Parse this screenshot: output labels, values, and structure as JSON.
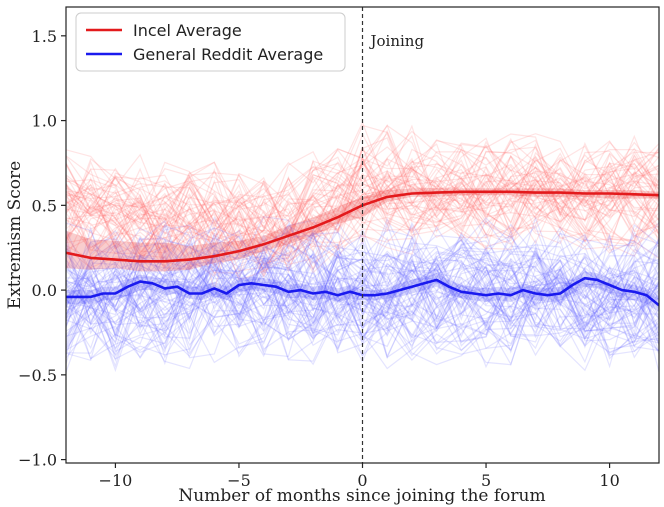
{
  "chart_data": {
    "type": "line",
    "xlabel": "Number of months since joining the forum",
    "ylabel": "Extremism Score",
    "xlim": [
      -12,
      12
    ],
    "ylim": [
      -1.02,
      1.67
    ],
    "xticks": [
      -10,
      -5,
      0,
      5,
      10
    ],
    "yticks": [
      -1.0,
      -0.5,
      0.0,
      0.5,
      1.0,
      1.5
    ],
    "xtick_labels": [
      "−10",
      "−5",
      "0",
      "5",
      "10"
    ],
    "ytick_labels": [
      "−1.0",
      "−0.5",
      "0.0",
      "0.5",
      "1.0",
      "1.5"
    ],
    "grid": false,
    "legend_position": "top-left",
    "annotation": {
      "x": 0,
      "label": "Joining"
    },
    "series": [
      {
        "name": "Incel Average",
        "color": "#e31a1c",
        "x": [
          -12,
          -11,
          -10,
          -9,
          -8,
          -7,
          -6,
          -5,
          -4,
          -3,
          -2,
          -1,
          0,
          1,
          2,
          3,
          4,
          5,
          6,
          7,
          8,
          9,
          10,
          11,
          12
        ],
        "values": [
          0.22,
          0.19,
          0.18,
          0.17,
          0.17,
          0.18,
          0.2,
          0.23,
          0.27,
          0.32,
          0.37,
          0.43,
          0.5,
          0.55,
          0.57,
          0.575,
          0.58,
          0.58,
          0.58,
          0.575,
          0.575,
          0.57,
          0.57,
          0.565,
          0.56
        ],
        "band_lower": [
          0.13,
          0.12,
          0.13,
          0.11,
          0.11,
          0.12,
          0.16,
          0.18,
          0.23,
          0.27,
          0.32,
          0.39,
          0.43,
          0.52,
          0.55,
          0.55,
          0.56,
          0.56,
          0.56,
          0.55,
          0.55,
          0.55,
          0.54,
          0.54,
          0.54
        ],
        "band_upper": [
          0.35,
          0.3,
          0.29,
          0.28,
          0.28,
          0.26,
          0.28,
          0.29,
          0.32,
          0.38,
          0.43,
          0.49,
          0.55,
          0.59,
          0.6,
          0.6,
          0.6,
          0.6,
          0.6,
          0.6,
          0.6,
          0.59,
          0.59,
          0.59,
          0.58
        ]
      },
      {
        "name": "General Reddit Average",
        "color": "#1a1aee",
        "x": [
          -12,
          -11.5,
          -11,
          -10.5,
          -10,
          -9.5,
          -9,
          -8.5,
          -8,
          -7.5,
          -7,
          -6.5,
          -6,
          -5.5,
          -5,
          -4.5,
          -4,
          -3.5,
          -3,
          -2.5,
          -2,
          -1.5,
          -1,
          -0.5,
          0,
          0.5,
          1,
          1.5,
          2,
          2.5,
          3,
          3.5,
          4,
          4.5,
          5,
          5.5,
          6,
          6.5,
          7,
          7.5,
          8,
          8.5,
          9,
          9.5,
          10,
          10.5,
          11,
          11.5,
          12
        ],
        "values": [
          -0.04,
          -0.04,
          -0.04,
          -0.02,
          -0.02,
          0.02,
          0.05,
          0.04,
          0.01,
          0.02,
          -0.02,
          -0.02,
          0.01,
          -0.02,
          0.03,
          0.04,
          0.03,
          0.02,
          -0.01,
          0.0,
          -0.02,
          -0.01,
          -0.03,
          -0.01,
          -0.03,
          -0.03,
          -0.02,
          0.0,
          0.02,
          0.04,
          0.06,
          0.02,
          -0.01,
          -0.02,
          -0.03,
          -0.02,
          -0.03,
          0.0,
          -0.02,
          -0.03,
          -0.02,
          0.03,
          0.07,
          0.06,
          0.03,
          0.0,
          -0.01,
          -0.03,
          -0.09
        ],
        "band_lower": [
          -0.08,
          -0.08,
          -0.08,
          -0.06,
          -0.06,
          -0.03,
          0.0,
          0.0,
          -0.03,
          -0.02,
          -0.05,
          -0.06,
          -0.03,
          -0.06,
          -0.01,
          0.0,
          -0.01,
          -0.02,
          -0.05,
          -0.04,
          -0.06,
          -0.05,
          -0.07,
          -0.05,
          -0.06,
          -0.06,
          -0.05,
          -0.04,
          -0.02,
          0.0,
          0.02,
          -0.02,
          -0.05,
          -0.06,
          -0.07,
          -0.06,
          -0.07,
          -0.04,
          -0.06,
          -0.07,
          -0.06,
          -0.02,
          0.02,
          0.01,
          -0.02,
          -0.05,
          -0.06,
          -0.08,
          -0.13
        ],
        "band_upper": [
          0.0,
          0.0,
          0.0,
          0.02,
          0.02,
          0.06,
          0.09,
          0.08,
          0.05,
          0.06,
          0.02,
          0.02,
          0.05,
          0.02,
          0.07,
          0.08,
          0.07,
          0.06,
          0.03,
          0.04,
          0.02,
          0.03,
          0.01,
          0.03,
          0.0,
          0.0,
          0.01,
          0.04,
          0.06,
          0.08,
          0.1,
          0.06,
          0.03,
          0.02,
          0.01,
          0.02,
          0.01,
          0.04,
          0.02,
          0.01,
          0.02,
          0.07,
          0.11,
          0.1,
          0.07,
          0.04,
          0.03,
          0.01,
          -0.05
        ]
      }
    ],
    "background_trajectories": [
      {
        "group": "Incel",
        "color": "#ff6b6b",
        "trajectory_count": 60,
        "seed": 7,
        "trend_x": [
          -12,
          -8,
          -4,
          -2,
          -1,
          0,
          1,
          2,
          4,
          8,
          12
        ],
        "trend_y": [
          0.5,
          0.42,
          0.38,
          0.45,
          0.55,
          0.62,
          0.62,
          0.6,
          0.58,
          0.57,
          0.56
        ],
        "spread": 0.22
      },
      {
        "group": "General Reddit",
        "color": "#6b6bff",
        "trajectory_count": 75,
        "seed": 11,
        "trend_x": [
          -12,
          -6,
          0,
          6,
          12
        ],
        "trend_y": [
          -0.05,
          -0.02,
          -0.03,
          -0.03,
          -0.05
        ],
        "spread": 0.26
      }
    ]
  }
}
